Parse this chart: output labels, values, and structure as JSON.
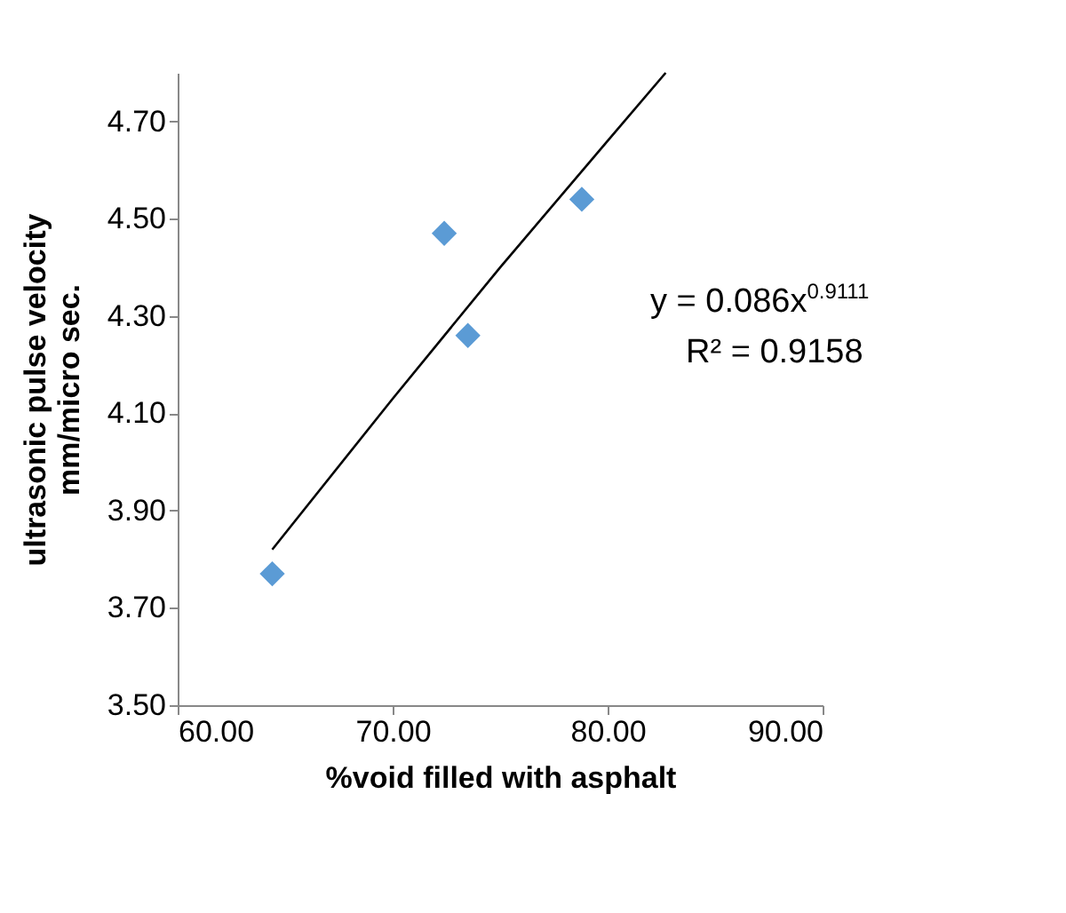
{
  "chart_data": {
    "type": "scatter",
    "xlabel": "%void filled with asphalt",
    "ylabel": "ultrasonic pulse velocity\nmm/micro sec.",
    "xlim": [
      60,
      90
    ],
    "ylim": [
      3.5,
      4.8
    ],
    "xticks": [
      {
        "value": 60,
        "label": "60.00"
      },
      {
        "value": 70,
        "label": "70.00"
      },
      {
        "value": 80,
        "label": "80.00"
      },
      {
        "value": 90,
        "label": "90.00"
      }
    ],
    "yticks": [
      {
        "value": 3.5,
        "label": "3.50"
      },
      {
        "value": 3.7,
        "label": "3.70"
      },
      {
        "value": 3.9,
        "label": "3.90"
      },
      {
        "value": 4.1,
        "label": "4.10"
      },
      {
        "value": 4.3,
        "label": "4.30"
      },
      {
        "value": 4.5,
        "label": "4.50"
      },
      {
        "value": 4.7,
        "label": "4.70"
      }
    ],
    "marker": "diamond",
    "grid": false,
    "series": [
      {
        "color": "#5b9bd5",
        "x": [
          64.4,
          72.4,
          73.5,
          78.8
        ],
        "values": [
          3.77,
          4.47,
          4.26,
          4.54
        ]
      },
      {
        "type": "line",
        "color": "#000000",
        "marker": "none",
        "x": [
          64.4,
          70,
          75,
          80,
          82.7
        ],
        "values": [
          3.82,
          4.13,
          4.4,
          4.66,
          4.8
        ]
      }
    ],
    "annotations": [
      "y = 0.086x$^{0.9111}$",
      "R² = 0.9158"
    ]
  }
}
